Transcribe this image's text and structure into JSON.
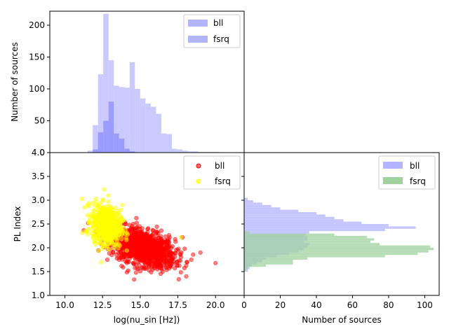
{
  "chart_data": [
    {
      "type": "bar",
      "panel": "top-histogram",
      "xlim": [
        9.0,
        21.9
      ],
      "ylim": [
        0,
        222
      ],
      "yticks": [
        0,
        50,
        100,
        150,
        200
      ],
      "ylabel": "Number of sources",
      "legend": {
        "placement": "top-right",
        "entries": [
          "bll",
          "fsrq"
        ]
      },
      "colors": {
        "bll": "#b3b3ff",
        "fsrq": "#8c8cff"
      },
      "bin_width": 0.35,
      "series": [
        {
          "name": "bll",
          "bin_starts": [
            11.5,
            11.85,
            12.2,
            12.55,
            12.9,
            13.25,
            13.6,
            13.95,
            14.3,
            14.65,
            15.0,
            15.35,
            15.7,
            16.05,
            16.4,
            16.75,
            17.1,
            17.45,
            17.8,
            18.15,
            18.5,
            18.85,
            19.2,
            19.55,
            19.9
          ],
          "values": [
            3,
            43,
            123,
            218,
            145,
            105,
            103,
            102,
            142,
            100,
            85,
            77,
            72,
            61,
            30,
            29,
            6,
            5,
            3,
            2,
            2,
            1,
            1,
            1,
            1
          ]
        },
        {
          "name": "fsrq",
          "bin_starts": [
            11.85,
            12.2,
            12.55,
            12.9,
            13.25,
            13.6,
            13.95,
            14.3
          ],
          "values": [
            5,
            32,
            50,
            80,
            30,
            22,
            6,
            2
          ]
        }
      ]
    },
    {
      "type": "scatter",
      "panel": "scatter",
      "xlim": [
        9.0,
        21.9
      ],
      "ylim": [
        1.0,
        4.0
      ],
      "xticks": [
        "10.0",
        "12.5",
        "15.0",
        "17.5",
        "20.0"
      ],
      "yticks": [
        "1.0",
        "1.5",
        "2.0",
        "2.5",
        "3.0",
        "3.5",
        "4.0"
      ],
      "xlabel": "log(nu_sin [Hz])",
      "ylabel": "PL Index",
      "legend": {
        "placement": "top-right",
        "entries": [
          "bll",
          "fsrq"
        ]
      },
      "colors": {
        "bll": "#ff0000",
        "fsrq": "#ffff00"
      },
      "series": [
        {
          "name": "bll",
          "point_count": 1300,
          "x_mean": 15.2,
          "x_std": 1.05,
          "y_mean": 2.0,
          "y_std": 0.2,
          "correlation": -0.45,
          "points": [
            [
              20.0,
              1.68
            ],
            [
              18.4,
              1.75
            ],
            [
              17.8,
              2.22
            ],
            [
              17.0,
              1.6
            ],
            [
              14.2,
              1.52
            ],
            [
              13.6,
              1.75
            ],
            [
              16.5,
              1.5
            ],
            [
              19.0,
              1.9
            ]
          ]
        },
        {
          "name": "fsrq",
          "point_count": 700,
          "x_mean": 12.75,
          "x_std": 0.48,
          "y_mean": 2.48,
          "y_std": 0.2,
          "correlation": -0.2,
          "points": [
            [
              12.6,
              3.23
            ],
            [
              12.9,
              3.1
            ],
            [
              11.4,
              2.35
            ],
            [
              13.8,
              2.9
            ],
            [
              12.4,
              1.7
            ],
            [
              17.7,
              2.22
            ]
          ]
        }
      ]
    },
    {
      "type": "bar",
      "orientation": "horizontal",
      "panel": "right-histogram",
      "xlim": [
        0,
        108
      ],
      "ylim": [
        1.0,
        4.0
      ],
      "xticks": [
        0,
        20,
        40,
        60,
        80,
        100
      ],
      "xlabel": "Number of sources",
      "legend": {
        "placement": "top-right",
        "entries": [
          "bll",
          "fsrq"
        ]
      },
      "colors": {
        "bll": "#b3b3ff",
        "fsrq": "#9fd19f"
      },
      "bin_height": 0.05,
      "series": [
        {
          "name": "bll",
          "bin_starts": [
            1.5,
            1.55,
            1.6,
            1.65,
            1.7,
            1.75,
            1.8,
            1.85,
            1.9,
            1.95,
            2.0,
            2.05,
            2.1,
            2.15,
            2.2,
            2.25,
            2.3,
            2.35,
            2.4,
            2.45,
            2.5,
            2.55,
            2.6,
            2.65,
            2.7,
            2.75,
            2.8,
            2.85,
            2.9,
            2.95,
            3.0
          ],
          "values": [
            2,
            3,
            4,
            7,
            10,
            12,
            18,
            25,
            30,
            33,
            35,
            36,
            33,
            35,
            35,
            34,
            36,
            78,
            95,
            80,
            65,
            55,
            50,
            45,
            40,
            30,
            20,
            15,
            10,
            5,
            2
          ]
        },
        {
          "name": "fsrq",
          "bin_starts": [
            1.5,
            1.55,
            1.6,
            1.65,
            1.7,
            1.75,
            1.8,
            1.85,
            1.9,
            1.95,
            2.0,
            2.05,
            2.1,
            2.15,
            2.2,
            2.25,
            2.3
          ],
          "values": [
            1,
            2,
            12,
            27,
            27,
            35,
            78,
            96,
            102,
            105,
            103,
            75,
            70,
            72,
            68,
            50,
            3
          ]
        }
      ]
    }
  ]
}
